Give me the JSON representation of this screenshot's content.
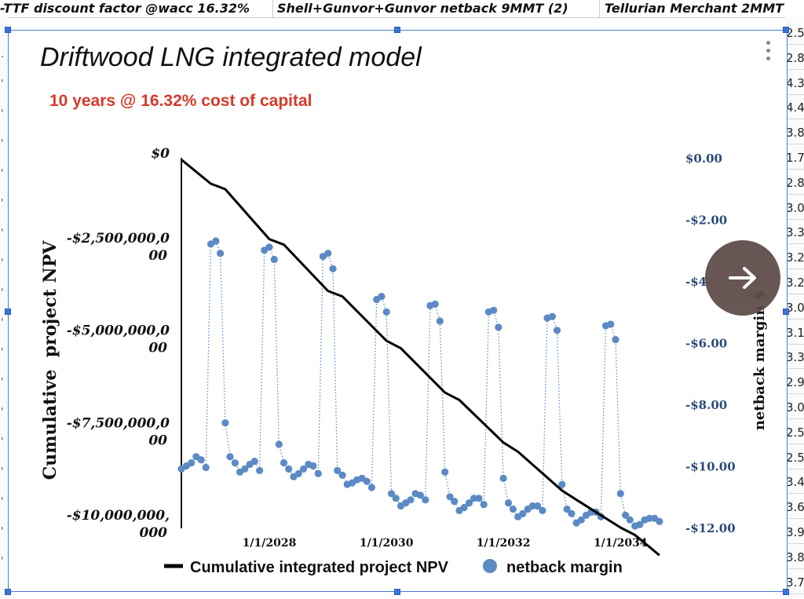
{
  "spreadsheet": {
    "header_cells": [
      "-TTF discount factor @wacc 16.32%",
      "Shell+Gunvor+Gunvor netback 9MMT (2)",
      "Tellurian Merchant 2MMT"
    ],
    "right_column_values": [
      "2.5",
      "2.8",
      "4.3",
      "4.4",
      "3.8",
      "1.7",
      "2.8",
      "3.0",
      "3.3",
      "3.2",
      "3.2",
      "3.0",
      "3.1",
      "3.3",
      "2.9",
      "3.0",
      "2.5",
      "2.5",
      "3.4",
      "3.6",
      "3.9",
      "3.8",
      "3.7"
    ],
    "left_column_marks": [
      ".",
      "'",
      "'",
      "'",
      "'",
      "'",
      "'",
      "'",
      "'",
      "'",
      "'",
      "'",
      "'",
      "'",
      "'",
      "'",
      "'",
      "'"
    ]
  },
  "chart_data": {
    "type": "line",
    "title": "Driftwood LNG integrated model",
    "subtitle": "10 years @ 16.32% cost of capital",
    "ylabel_left": "Cumulative  project NPV",
    "ylabel_right": "netback margin $",
    "y_left_ticks": [
      [
        "$0"
      ],
      [
        "-$2,500,000,0",
        "00"
      ],
      [
        "-$5,000,000,0",
        "00"
      ],
      [
        "-$7,500,000,0",
        "00"
      ],
      [
        "-$10,000,000,",
        "000"
      ]
    ],
    "y_left_range": [
      -10000000000,
      0
    ],
    "y_right_ticks": [
      "$0.00",
      "-$2.00",
      "-$4",
      "-$6.00",
      "-$8.00",
      "-$10.00",
      "-$12.00"
    ],
    "y_right_range": [
      -12,
      0
    ],
    "x_ticks": [
      "1/1/2028",
      "1/1/2030",
      "1/1/2032",
      "1/1/2034"
    ],
    "x_range": [
      "2026-07-01",
      "2034-10-01"
    ],
    "grid": false,
    "legend_position": "bottom",
    "series": [
      {
        "name": "Cumulative integrated project NPV",
        "style": "line",
        "color": "#000000",
        "x": [
          "2026-07-01",
          "2027-01-01",
          "2027-04-01",
          "2028-01-01",
          "2028-04-01",
          "2029-01-01",
          "2029-04-01",
          "2030-01-01",
          "2030-04-01",
          "2031-01-01",
          "2031-04-01",
          "2032-01-01",
          "2032-04-01",
          "2033-01-01",
          "2033-04-01",
          "2034-01-01",
          "2034-04-01",
          "2034-09-01"
        ],
        "values": [
          -50000000,
          -700000000,
          -850000000,
          -2200000000,
          -2350000000,
          -3600000000,
          -3750000000,
          -4950000000,
          -5150000000,
          -6350000000,
          -6550000000,
          -7700000000,
          -7950000000,
          -9000000000,
          -9250000000,
          -10000000000,
          -10200000000,
          -10750000000
        ]
      },
      {
        "name": "netback margin",
        "style": "markers-dotted",
        "color": "#5b8ac4",
        "x": [
          "2026-07-01",
          "2026-08-01",
          "2026-09-01",
          "2026-10-01",
          "2026-11-01",
          "2026-12-01",
          "2027-01-01",
          "2027-02-01",
          "2027-03-01",
          "2027-04-01",
          "2027-05-01",
          "2027-06-01",
          "2027-07-01",
          "2027-08-01",
          "2027-09-01",
          "2027-10-01",
          "2027-11-01",
          "2027-12-01",
          "2028-01-01",
          "2028-02-01",
          "2028-03-01",
          "2028-04-01",
          "2028-05-01",
          "2028-06-01",
          "2028-07-01",
          "2028-08-01",
          "2028-09-01",
          "2028-10-01",
          "2028-11-01",
          "2028-12-01",
          "2029-01-01",
          "2029-02-01",
          "2029-03-01",
          "2029-04-01",
          "2029-05-01",
          "2029-06-01",
          "2029-07-01",
          "2029-08-01",
          "2029-09-01",
          "2029-10-01",
          "2029-11-01",
          "2029-12-01",
          "2030-01-01",
          "2030-02-01",
          "2030-03-01",
          "2030-04-01",
          "2030-05-01",
          "2030-06-01",
          "2030-07-01",
          "2030-08-01",
          "2030-09-01",
          "2030-10-01",
          "2030-11-01",
          "2030-12-01",
          "2031-01-01",
          "2031-02-01",
          "2031-03-01",
          "2031-04-01",
          "2031-05-01",
          "2031-06-01",
          "2031-07-01",
          "2031-08-01",
          "2031-09-01",
          "2031-10-01",
          "2031-11-01",
          "2031-12-01",
          "2032-01-01",
          "2032-02-01",
          "2032-03-01",
          "2032-04-01",
          "2032-05-01",
          "2032-06-01",
          "2032-07-01",
          "2032-08-01",
          "2032-09-01",
          "2032-10-01",
          "2032-11-01",
          "2032-12-01",
          "2033-01-01",
          "2033-02-01",
          "2033-03-01",
          "2033-04-01",
          "2033-05-01",
          "2033-06-01",
          "2033-07-01",
          "2033-08-01",
          "2033-09-01",
          "2033-10-01",
          "2033-11-01",
          "2033-12-01",
          "2034-01-01",
          "2034-02-01",
          "2034-03-01",
          "2034-04-01",
          "2034-05-01",
          "2034-06-01",
          "2034-07-01",
          "2034-08-01",
          "2034-09-01"
        ],
        "values": [
          -10.1,
          -10.0,
          -9.9,
          -9.7,
          -9.8,
          -10.05,
          -2.8,
          -2.7,
          -3.1,
          -8.6,
          -9.7,
          -9.9,
          -10.2,
          -10.1,
          -9.95,
          -9.85,
          -10.15,
          -3.0,
          -2.9,
          -3.3,
          -9.3,
          -9.9,
          -10.1,
          -10.35,
          -10.25,
          -10.1,
          -9.95,
          -10.0,
          -10.25,
          -3.2,
          -3.1,
          -3.6,
          -10.15,
          -10.3,
          -10.6,
          -10.55,
          -10.45,
          -10.4,
          -10.5,
          -10.7,
          -4.6,
          -4.5,
          -5.0,
          -10.9,
          -11.05,
          -11.3,
          -11.2,
          -11.1,
          -10.9,
          -10.95,
          -11.1,
          -4.8,
          -4.75,
          -5.3,
          -10.2,
          -11.0,
          -11.15,
          -11.45,
          -11.35,
          -11.2,
          -11.05,
          -11.05,
          -11.25,
          -5.0,
          -4.95,
          -5.5,
          -10.4,
          -11.2,
          -11.4,
          -11.65,
          -11.55,
          -11.4,
          -11.3,
          -11.3,
          -11.45,
          -5.2,
          -5.15,
          -5.6,
          -10.6,
          -11.4,
          -11.55,
          -11.85,
          -11.75,
          -11.6,
          -11.5,
          -11.5,
          -11.65,
          -5.45,
          -5.4,
          -5.9,
          -10.9,
          -11.6,
          -11.75,
          -11.95,
          -11.9,
          -11.75,
          -11.7,
          -11.7,
          -11.8
        ]
      }
    ]
  },
  "nav": {
    "next_icon": "arrow-right-icon"
  }
}
